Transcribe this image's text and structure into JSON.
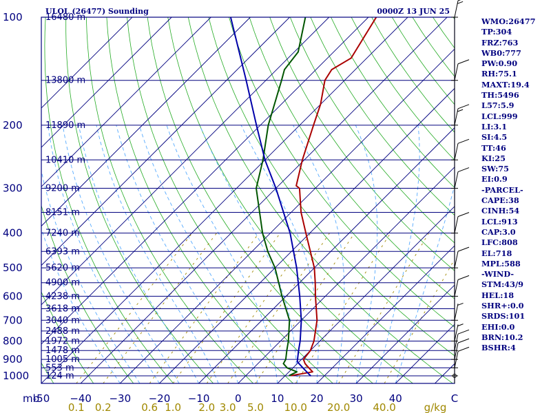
{
  "header": {
    "station": "ULOL (26477) Sounding",
    "time": "0000Z 13 JUN 25"
  },
  "chart_data": {
    "type": "line",
    "subtype": "skew-t log-p",
    "title": "ULOL (26477) Sounding",
    "subtitle": "0000Z 13 JUN 25",
    "pressure_axis": {
      "unit_label": "mb",
      "ticks": [
        100,
        200,
        300,
        400,
        500,
        600,
        700,
        800,
        900,
        1000
      ],
      "range": [
        100,
        1050
      ],
      "scale": "log"
    },
    "temperature_axis": {
      "ticks": [
        -50,
        -40,
        -30,
        -20,
        -10,
        0,
        10,
        20,
        30,
        40
      ],
      "tick_labels": [
        "-50",
        "−40",
        "−30",
        "−20",
        "−10",
        "0",
        "10",
        "20",
        "30",
        "40"
      ],
      "unit_label": "C",
      "range": [
        -50,
        55
      ]
    },
    "mixing_ratio_axis": {
      "unit_label": "g/kg",
      "values": [
        0.1,
        0.2,
        0.6,
        1.0,
        2.0,
        3.0,
        5.0,
        10.0,
        20.0,
        40.0
      ],
      "labels": [
        "0.1",
        "0.2",
        "0.6",
        "1.0",
        "2.0",
        "3.0",
        "5.0",
        "10.0",
        "20.0",
        "40.0"
      ]
    },
    "height_levels": [
      {
        "p": 100,
        "label": "16480 m"
      },
      {
        "p": 150,
        "label": "13800 m"
      },
      {
        "p": 200,
        "label": "11890 m"
      },
      {
        "p": 250,
        "label": "10410 m"
      },
      {
        "p": 300,
        "label": "9200 m"
      },
      {
        "p": 350,
        "label": "8151 m"
      },
      {
        "p": 400,
        "label": "7240 m"
      },
      {
        "p": 450,
        "label": "6393 m"
      },
      {
        "p": 500,
        "label": "5620 m"
      },
      {
        "p": 550,
        "label": "4900 m"
      },
      {
        "p": 600,
        "label": "4238 m"
      },
      {
        "p": 650,
        "label": "3618 m"
      },
      {
        "p": 700,
        "label": "3040 m"
      },
      {
        "p": 750,
        "label": "2488 m"
      },
      {
        "p": 800,
        "label": "1972 m"
      },
      {
        "p": 850,
        "label": "1478 m"
      },
      {
        "p": 900,
        "label": "1005 m"
      },
      {
        "p": 950,
        "label": "553 m"
      },
      {
        "p": 1000,
        "label": "124 m"
      }
    ],
    "series": [
      {
        "name": "",
        "role": "temperature",
        "color": "#aa0000",
        "points": [
          {
            "p": 999,
            "t": 11.5
          },
          {
            "p": 975,
            "t": 16.0
          },
          {
            "p": 950,
            "t": 14.0
          },
          {
            "p": 925,
            "t": 12.0
          },
          {
            "p": 900,
            "t": 10.5
          },
          {
            "p": 850,
            "t": 10.0
          },
          {
            "p": 800,
            "t": 8.5
          },
          {
            "p": 700,
            "t": 4.0
          },
          {
            "p": 600,
            "t": -2.5
          },
          {
            "p": 550,
            "t": -6.0
          },
          {
            "p": 500,
            "t": -10.0
          },
          {
            "p": 400,
            "t": -21.0
          },
          {
            "p": 350,
            "t": -27.5
          },
          {
            "p": 300,
            "t": -34.0
          },
          {
            "p": 295,
            "t": -35.5
          },
          {
            "p": 250,
            "t": -40.5
          },
          {
            "p": 200,
            "t": -46.5
          },
          {
            "p": 175,
            "t": -50.0
          },
          {
            "p": 150,
            "t": -55.0
          },
          {
            "p": 140,
            "t": -56.0
          },
          {
            "p": 130,
            "t": -54.0
          },
          {
            "p": 100,
            "t": -58.0
          }
        ]
      },
      {
        "name": "",
        "role": "dewpoint",
        "color": "#005500",
        "points": [
          {
            "p": 999,
            "t": 11.0
          },
          {
            "p": 975,
            "t": 12.0
          },
          {
            "p": 950,
            "t": 8.5
          },
          {
            "p": 925,
            "t": 6.5
          },
          {
            "p": 900,
            "t": 6.0
          },
          {
            "p": 850,
            "t": 4.0
          },
          {
            "p": 800,
            "t": 2.0
          },
          {
            "p": 700,
            "t": -3.0
          },
          {
            "p": 600,
            "t": -11.0
          },
          {
            "p": 500,
            "t": -20.0
          },
          {
            "p": 450,
            "t": -26.0
          },
          {
            "p": 400,
            "t": -32.0
          },
          {
            "p": 300,
            "t": -45.0
          },
          {
            "p": 250,
            "t": -50.5
          },
          {
            "p": 200,
            "t": -58.0
          },
          {
            "p": 150,
            "t": -66.0
          },
          {
            "p": 140,
            "t": -68.0
          },
          {
            "p": 125,
            "t": -69.0
          },
          {
            "p": 100,
            "t": -76.0
          }
        ]
      },
      {
        "name": "",
        "role": "parcel",
        "color": "#0000aa",
        "points": [
          {
            "p": 1000,
            "t": 16.5
          },
          {
            "p": 975,
            "t": 14.5
          },
          {
            "p": 950,
            "t": 12.5
          },
          {
            "p": 913,
            "t": 9.5
          },
          {
            "p": 850,
            "t": 7.0
          },
          {
            "p": 800,
            "t": 5.0
          },
          {
            "p": 700,
            "t": 0.0
          },
          {
            "p": 600,
            "t": -6.5
          },
          {
            "p": 500,
            "t": -14.5
          },
          {
            "p": 400,
            "t": -25.0
          },
          {
            "p": 300,
            "t": -40.0
          },
          {
            "p": 250,
            "t": -50.0
          },
          {
            "p": 200,
            "t": -61.0
          },
          {
            "p": 150,
            "t": -75.0
          },
          {
            "p": 100,
            "t": -95.0
          }
        ]
      }
    ],
    "wind_barbs": [
      {
        "p": 1000,
        "speed_kt": 0
      },
      {
        "p": 950,
        "speed_kt": 10
      },
      {
        "p": 900,
        "speed_kt": 10
      },
      {
        "p": 850,
        "speed_kt": 10
      },
      {
        "p": 800,
        "speed_kt": 5
      },
      {
        "p": 700,
        "speed_kt": 5
      },
      {
        "p": 600,
        "speed_kt": 10
      },
      {
        "p": 500,
        "speed_kt": 10
      },
      {
        "p": 400,
        "speed_kt": 10
      },
      {
        "p": 300,
        "speed_kt": 10
      },
      {
        "p": 250,
        "speed_kt": 10
      },
      {
        "p": 200,
        "speed_kt": 15
      },
      {
        "p": 150,
        "speed_kt": 10
      },
      {
        "p": 100,
        "speed_kt": 15
      }
    ],
    "grid": true
  },
  "indices": [
    "WMO:26477",
    "TP:304",
    "FRZ:763",
    "WB0:777",
    "PW:0.90",
    "RH:75.1",
    "MAXT:19.4",
    "TH:5496",
    "L57:5.9",
    "LCL:999",
    "LI:3.1",
    "SI:4.5",
    "TT:46",
    "KI:25",
    "SW:75",
    "EI:0.9",
    "-PARCEL-",
    "CAPE:38",
    "CINH:54",
    "LCL:913",
    "CAP:3.0",
    "LFC:808",
    "EL:718",
    "MPL:588",
    "-WIND-",
    "STM:43/9",
    "HEL:18",
    "SHR+:0.0",
    "SRDS:101",
    "EHI:0.0",
    "BRN:10.2",
    "BSHR:4"
  ],
  "colors": {
    "frame": "#00007f",
    "skew_isotherm": "#00007f",
    "dry_adiabat": "#22aa22",
    "moist_adiabat": "#55aaff",
    "mixing_ratio": "#a08800"
  }
}
